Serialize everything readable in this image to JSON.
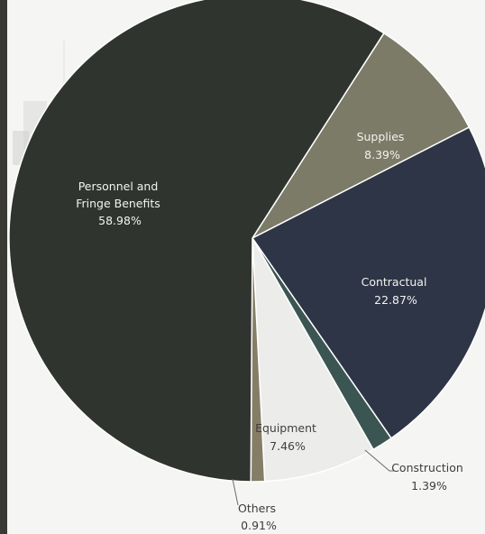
{
  "chart_data": {
    "type": "pie",
    "slices": [
      {
        "name": "Supplies",
        "value": 8.39,
        "label": "8.39%",
        "color": "#7c7b67"
      },
      {
        "name": "Contractual",
        "value": 22.87,
        "label": "22.87%",
        "color": "#2e3547"
      },
      {
        "name": "Construction",
        "value": 1.39,
        "label": "1.39%",
        "color": "#3b5552"
      },
      {
        "name": "Equipment",
        "value": 7.46,
        "label": "7.46%",
        "color": "#ececea"
      },
      {
        "name": "Others",
        "value": 0.91,
        "label": "0.91%",
        "color": "#857d65"
      },
      {
        "name": "Personnel and\nFringe Benefits",
        "value": 58.98,
        "label": "58.98%",
        "color": "#2f352e"
      }
    ],
    "labels": {
      "personnel_line1": "Personnel and",
      "personnel_line2": "Fringe Benefits",
      "personnel_value": "58.98%",
      "supplies_name": "Supplies",
      "supplies_value": "8.39%",
      "contractual_name": "Contractual",
      "contractual_value": "22.87%",
      "equipment_name": "Equipment",
      "equipment_value": "7.46%",
      "construction_name": "Construction",
      "construction_value": "1.39%",
      "others_name": "Others",
      "others_value": "0.91%"
    }
  }
}
